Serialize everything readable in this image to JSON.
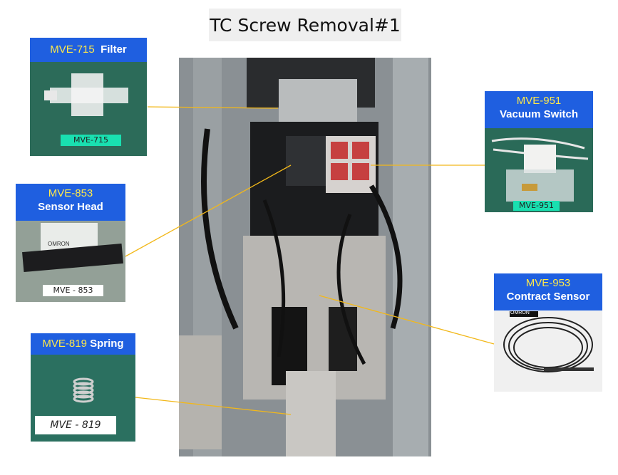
{
  "title": "TC Screw Removal#1",
  "parts": [
    {
      "code": "MVE-715",
      "name": "Filter",
      "tag": "MVE-715"
    },
    {
      "code": "MVE-853",
      "name": "Sensor Head",
      "tag": "MVE - 853",
      "device_text": "OMRON"
    },
    {
      "code": "MVE-819",
      "name": "Spring",
      "tag": "MVE - 819"
    },
    {
      "code": "MVE-951",
      "name": "Vacuum Switch",
      "tag": "MVE-951"
    },
    {
      "code": "MVE-953",
      "name": "Contract Sensor",
      "device_text": "OMRON"
    }
  ],
  "colors": {
    "header": "#1f5fe0",
    "code_highlight": "#ffe94a",
    "leader_line": "#f2b81a",
    "title_bg": "#efefef"
  }
}
